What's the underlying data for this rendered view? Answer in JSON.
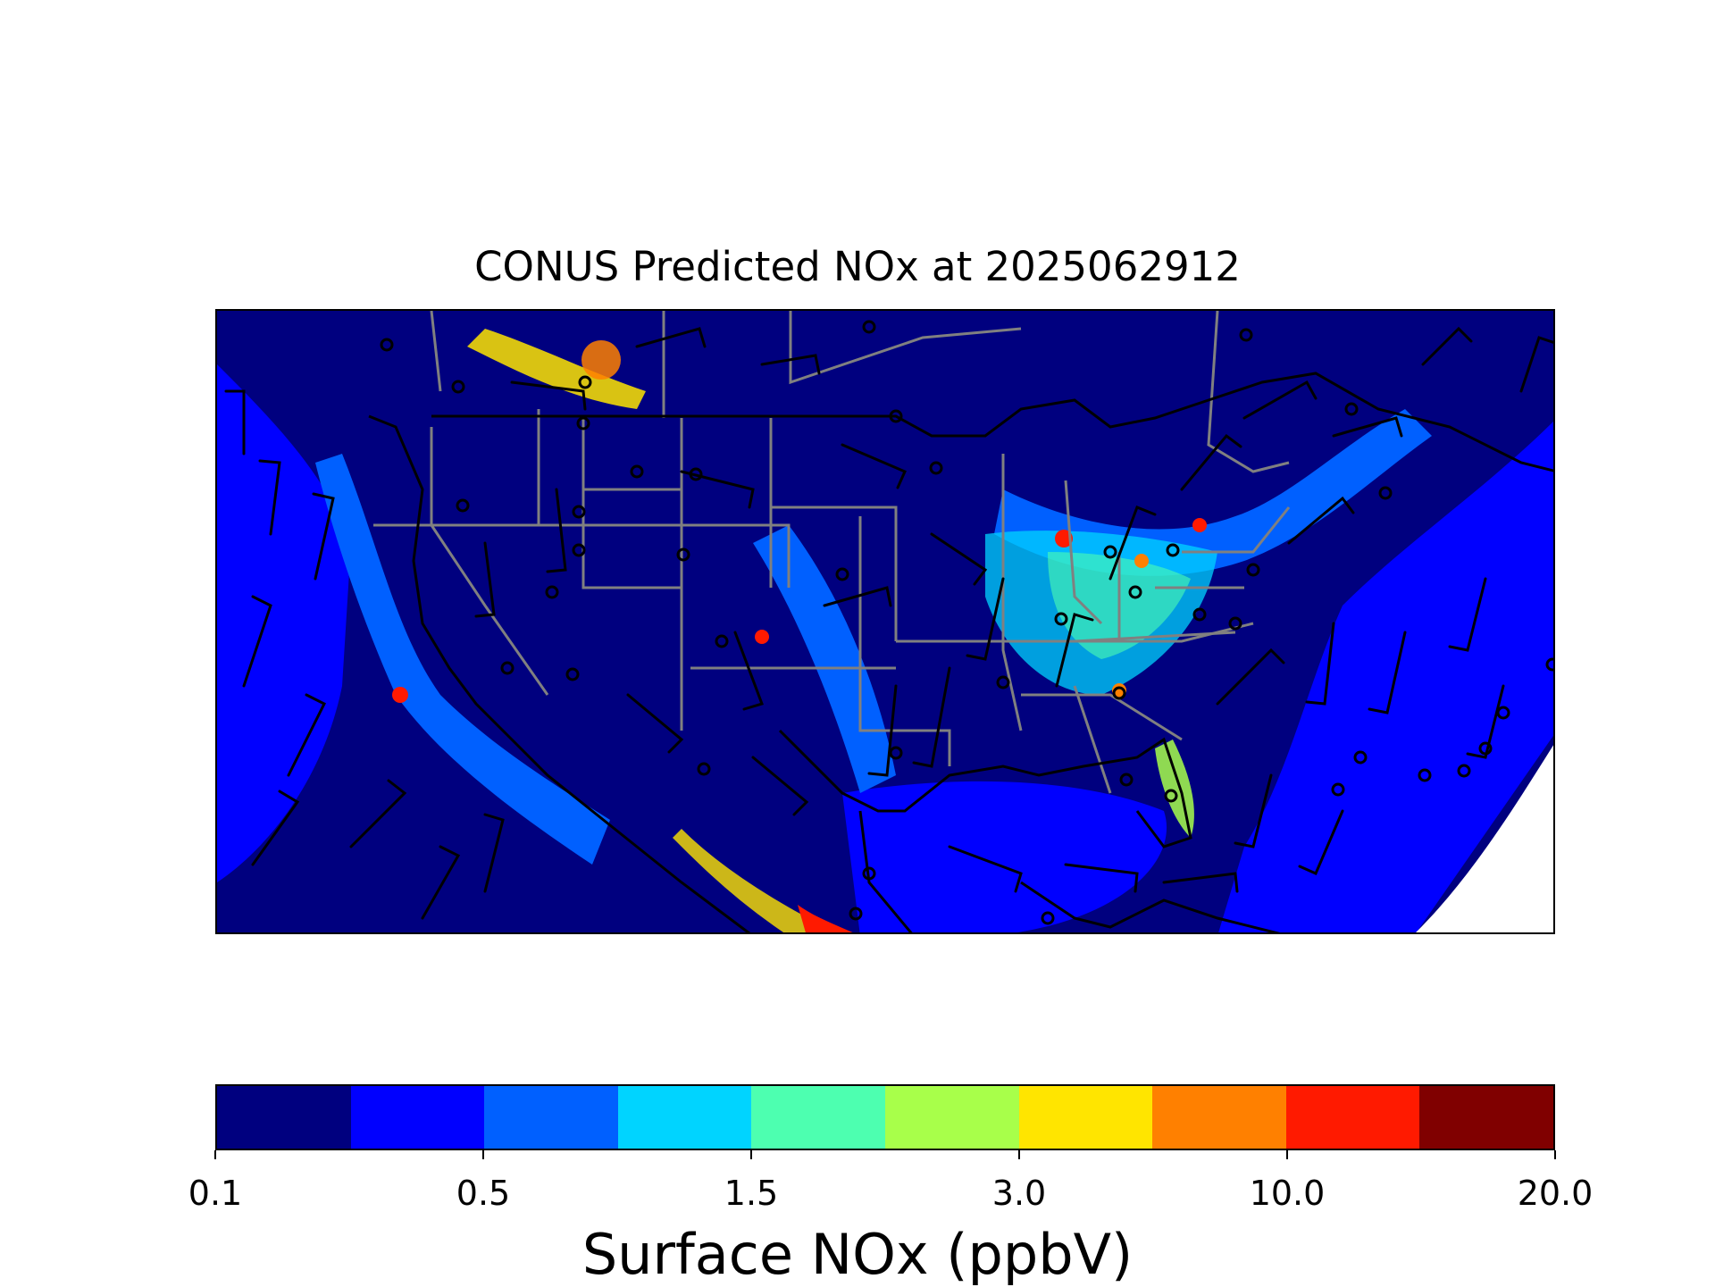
{
  "title": "CONUS Predicted NOx at 2025062912",
  "map": {
    "type": "heatmap",
    "region": "CONUS",
    "variable": "Surface NOx",
    "overlays": [
      "wind-barbs",
      "state-borders",
      "coastlines"
    ]
  },
  "colorbar": {
    "label": "Surface NOx (ppbV)",
    "colors": [
      "#00007f",
      "#0000ff",
      "#0060ff",
      "#00d4ff",
      "#4dffb0",
      "#a8ff4a",
      "#ffe500",
      "#ff8000",
      "#ff1a00",
      "#800000"
    ],
    "tick_values": [
      0.1,
      0.5,
      1.5,
      3.0,
      10.0,
      20.0
    ],
    "tick_labels": [
      "0.1",
      "0.5",
      "1.5",
      "3.0",
      "10.0",
      "20.0"
    ]
  }
}
